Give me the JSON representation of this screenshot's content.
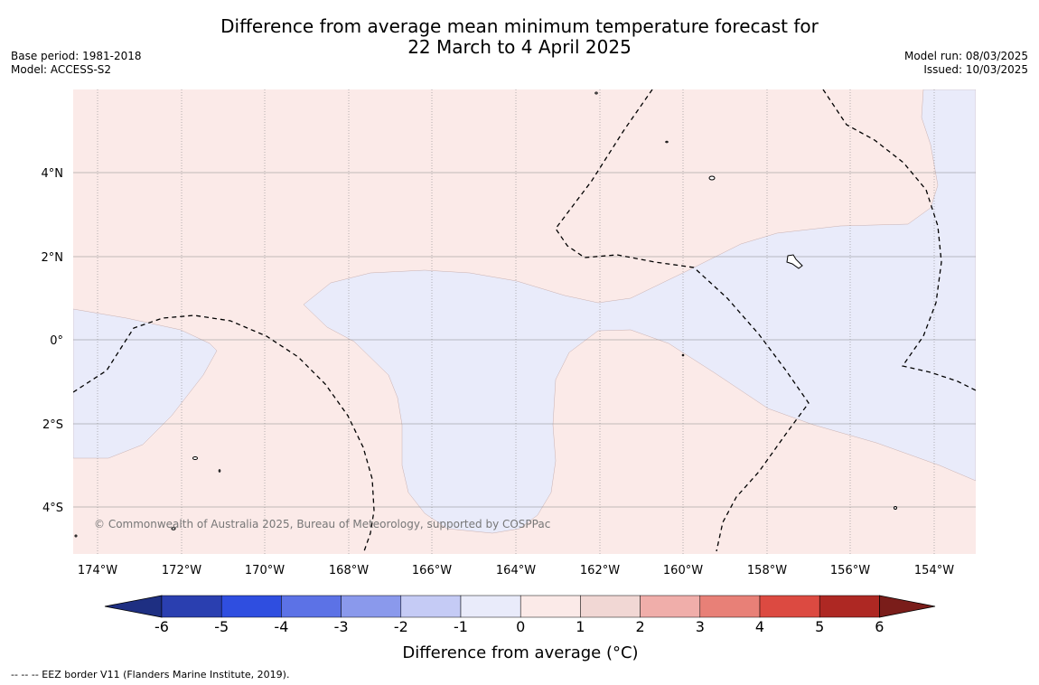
{
  "title_line1": "Difference from average mean minimum temperature forecast for",
  "title_line2": "22 March to 4 April 2025",
  "meta_left": [
    "Base period: 1981-2018",
    "Model: ACCESS-S2"
  ],
  "meta_right": [
    "Model run: 08/03/2025",
    "Issued: 10/03/2025"
  ],
  "copyright": "© Commonwealth of Australia 2025, Bureau of Meteorology, supported by COSPPac",
  "footer": "--  --  -- EEZ border V11 (Flanders Marine Institute, 2019).",
  "map": {
    "lon_labels": [
      "174°W",
      "172°W",
      "170°W",
      "168°W",
      "166°W",
      "164°W",
      "162°W",
      "160°W",
      "158°W",
      "156°W",
      "154°W"
    ],
    "lat_labels": [
      "4°N",
      "2°N",
      "0°",
      "2°S",
      "4°S"
    ],
    "colors": {
      "above_0_to_1": "#fbeae8",
      "below_minus1_to_0": "#e9ebfa"
    }
  },
  "colorbar": {
    "title": "Difference from average ($^\\circ$C)",
    "title_display": "Difference from average (°C)",
    "tick_labels": [
      "-6",
      "-5",
      "-4",
      "-3",
      "-2",
      "-1",
      "0",
      "1",
      "2",
      "3",
      "4",
      "5",
      "6"
    ],
    "colors": [
      "#1e2f82",
      "#2a3fb0",
      "#2f4ee0",
      "#5c72e6",
      "#8a99ec",
      "#c5cbf5",
      "#e9ebfa",
      "#fbeae8",
      "#f1d7d4",
      "#f0aeaa",
      "#e88077",
      "#dc4a41",
      "#ae2823",
      "#7a1d1a"
    ]
  }
}
